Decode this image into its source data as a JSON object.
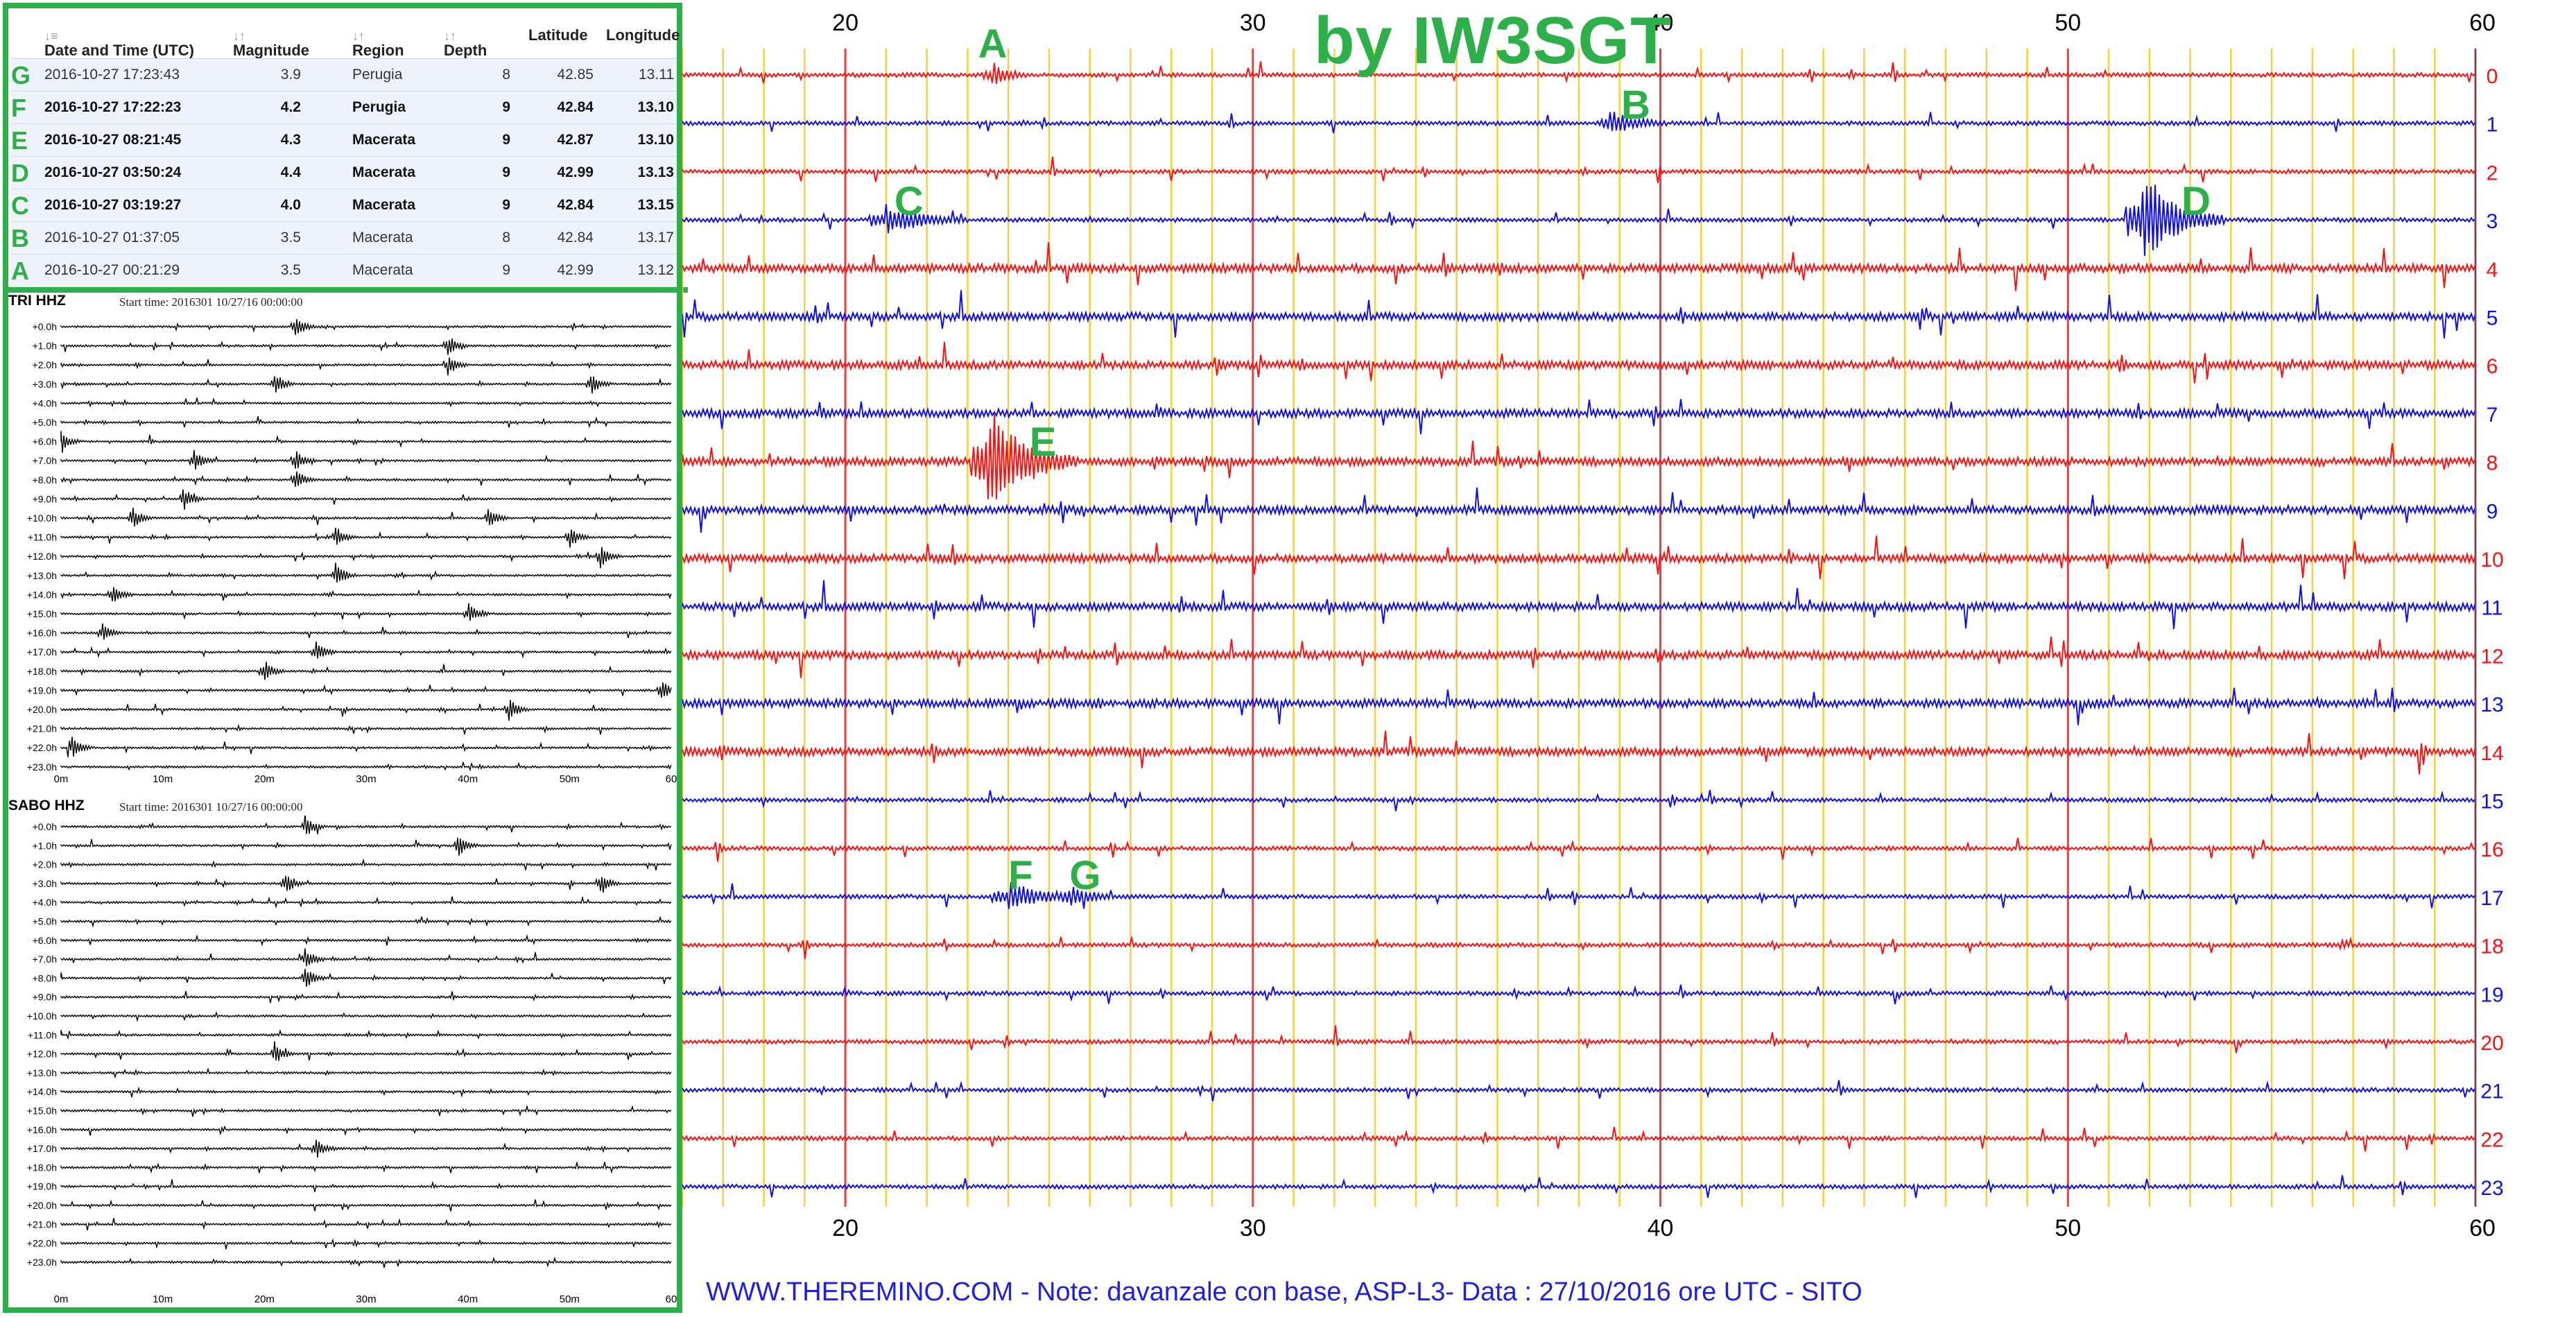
{
  "colors": {
    "frame_green": "#2db04a",
    "trace_red": "#ff1010",
    "trace_blue": "#1010e8",
    "minute_grid_yellow": "#f5d23c",
    "ten_minute_grid_red": "#e84040",
    "drum_trace": "#000000"
  },
  "table": {
    "headers": [
      "Date and Time (UTC)",
      "Magnitude",
      "Region",
      "Depth",
      "Latitude",
      "Longitude"
    ],
    "rows": [
      {
        "letter": "G",
        "time": "2016-10-27 17:23:43",
        "mag": "3.9",
        "region": "Perugia",
        "depth": "8",
        "lat": "42.85",
        "lon": "13.11",
        "bold": false
      },
      {
        "letter": "F",
        "time": "2016-10-27 17:22:23",
        "mag": "4.2",
        "region": "Perugia",
        "depth": "9",
        "lat": "42.84",
        "lon": "13.10",
        "bold": true
      },
      {
        "letter": "E",
        "time": "2016-10-27 08:21:45",
        "mag": "4.3",
        "region": "Macerata",
        "depth": "9",
        "lat": "42.87",
        "lon": "13.10",
        "bold": true
      },
      {
        "letter": "D",
        "time": "2016-10-27 03:50:24",
        "mag": "4.4",
        "region": "Macerata",
        "depth": "9",
        "lat": "42.99",
        "lon": "13.13",
        "bold": true
      },
      {
        "letter": "C",
        "time": "2016-10-27 03:19:27",
        "mag": "4.0",
        "region": "Macerata",
        "depth": "9",
        "lat": "42.84",
        "lon": "13.15",
        "bold": true
      },
      {
        "letter": "B",
        "time": "2016-10-27 01:37:05",
        "mag": "3.5",
        "region": "Macerata",
        "depth": "8",
        "lat": "42.84",
        "lon": "13.17",
        "bold": false
      },
      {
        "letter": "A",
        "time": "2016-10-27 00:21:29",
        "mag": "3.5",
        "region": "Macerata",
        "depth": "9",
        "lat": "42.99",
        "lon": "13.12",
        "bold": false
      }
    ]
  },
  "chart_data": [
    {
      "type": "line",
      "xlim": [
        16,
        60
      ],
      "xticks": [
        20,
        30,
        40,
        50,
        60
      ],
      "rows": [
        "0",
        "1",
        "2",
        "3",
        "4",
        "5",
        "6",
        "7",
        "8",
        "9",
        "10",
        "11",
        "12",
        "13",
        "14",
        "15",
        "16",
        "17",
        "18",
        "19",
        "20",
        "21",
        "22",
        "23"
      ],
      "row_colors": [
        "red",
        "blue"
      ],
      "events": [
        {
          "label": "A",
          "row": 0,
          "minute": 23.6
        },
        {
          "label": "B",
          "row": 1,
          "minute": 38.8
        },
        {
          "label": "C",
          "row": 3,
          "minute": 21.0
        },
        {
          "label": "D",
          "row": 3,
          "minute": 51.8
        },
        {
          "label": "E",
          "row": 8,
          "minute": 23.5
        },
        {
          "label": "F",
          "row": 17,
          "minute": 24.0
        },
        {
          "label": "G",
          "row": 17,
          "minute": 25.5
        }
      ],
      "title": "by IW3SGT",
      "footer": "WWW.THEREMINO.COM  -  Note: davanzale con base, ASP-L3- Data : 27/10/2016 ore UTC - SITO"
    },
    {
      "type": "line",
      "title": "TRI HHZ",
      "start_time": "Start time: 2016301 10/27/16 00:00:00",
      "rows": [
        "+0.0h",
        "+1.0h",
        "+2.0h",
        "+3.0h",
        "+4.0h",
        "+5.0h",
        "+6.0h",
        "+7.0h",
        "+8.0h",
        "+9.0h",
        "+10.0h",
        "+11.0h",
        "+12.0h",
        "+13.0h",
        "+14.0h",
        "+15.0h",
        "+16.0h",
        "+17.0h",
        "+18.0h",
        "+19.0h",
        "+20.0h",
        "+21.0h",
        "+22.0h",
        "+23.0h"
      ],
      "xticks": [
        "0m",
        "10m",
        "20m",
        "30m",
        "40m",
        "50m",
        "60"
      ],
      "events": [
        [
          3,
          52
        ],
        [
          3,
          21
        ],
        [
          7,
          23
        ],
        [
          8,
          23
        ],
        [
          0,
          23
        ],
        [
          1,
          38
        ],
        [
          2,
          38
        ],
        [
          9,
          12
        ],
        [
          10,
          7
        ],
        [
          10,
          42
        ],
        [
          11,
          27
        ],
        [
          11,
          50
        ],
        [
          13,
          27
        ],
        [
          16,
          4
        ],
        [
          17,
          25
        ],
        [
          18,
          20
        ],
        [
          15,
          40
        ],
        [
          19,
          59
        ],
        [
          22,
          1
        ],
        [
          20,
          44
        ],
        [
          14,
          5
        ],
        [
          6,
          0
        ],
        [
          12,
          53
        ],
        [
          7,
          13
        ]
      ]
    },
    {
      "type": "line",
      "title": "SABO HHZ",
      "start_time": "Start time: 2016301 10/27/16 00:00:00",
      "rows": [
        "+0.0h",
        "+1.0h",
        "+2.0h",
        "+3.0h",
        "+4.0h",
        "+5.0h",
        "+6.0h",
        "+7.0h",
        "+8.0h",
        "+9.0h",
        "+10.0h",
        "+11.0h",
        "+12.0h",
        "+13.0h",
        "+14.0h",
        "+15.0h",
        "+16.0h",
        "+17.0h",
        "+18.0h",
        "+19.0h",
        "+20.0h",
        "+21.0h",
        "+22.0h",
        "+23.0h"
      ],
      "xticks": [
        "0m",
        "10m",
        "20m",
        "30m",
        "40m",
        "50m",
        "60"
      ],
      "events": [
        [
          3,
          53
        ],
        [
          3,
          22
        ],
        [
          8,
          24
        ],
        [
          7,
          24
        ],
        [
          17,
          25
        ],
        [
          0,
          24
        ],
        [
          1,
          39
        ],
        [
          12,
          21
        ]
      ]
    }
  ]
}
